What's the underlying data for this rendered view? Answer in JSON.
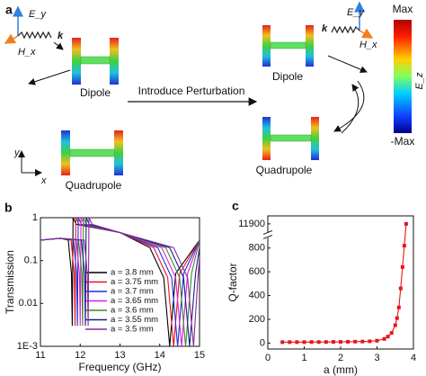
{
  "panel_a": {
    "label": "a",
    "left_ey": "E_y",
    "left_hx": "H_x",
    "left_k": "k",
    "dipole": "Dipole",
    "quadrupole": "Quadrupole",
    "arrow_text": "Introduce Perturbation",
    "axis_y": "y",
    "axis_x": "x",
    "right_ey": "E_y",
    "right_hx": "H_x",
    "right_k": "k",
    "right_dipole": "Dipole",
    "right_quadrupole": "Quadrupole",
    "colorbar_max": "Max",
    "colorbar_min": "-Max",
    "colorbar_title": "E_z"
  },
  "chart_data": [
    {
      "type": "line",
      "label": "b",
      "log_y": true,
      "x_label": "Frequency (GHz)",
      "y_label": "Transmission",
      "xlim": [
        11,
        15
      ],
      "xticks": [
        11,
        12,
        13,
        14,
        15
      ],
      "ylim": [
        0.001,
        1
      ],
      "yticks": [
        {
          "value": 0.001,
          "label": "1E-3"
        },
        0.01,
        0.1,
        1
      ],
      "series": [
        {
          "name": "a = 3.8 mm",
          "color": "#000000",
          "x": [
            11,
            11.5,
            11.7,
            11.78,
            11.8,
            11.82,
            11.9,
            13,
            13.75,
            14.1,
            14.25,
            14.4,
            15
          ],
          "values": [
            0.3,
            0.33,
            0.3,
            0.05,
            0.003,
            1,
            0.7,
            0.45,
            0.2,
            0.04,
            0.001,
            0.05,
            0.3
          ]
        },
        {
          "name": "a = 3.75 mm",
          "color": "#e8141c",
          "x": [
            11,
            11.5,
            11.77,
            11.85,
            11.87,
            11.89,
            11.97,
            13,
            13.85,
            14.2,
            14.35,
            14.5,
            15
          ],
          "values": [
            0.3,
            0.33,
            0.3,
            0.05,
            0.003,
            1,
            0.7,
            0.45,
            0.2,
            0.04,
            0.001,
            0.05,
            0.3
          ]
        },
        {
          "name": "a = 3.7 mm",
          "color": "#1f2fe0",
          "x": [
            11,
            11.5,
            11.83,
            11.91,
            11.93,
            11.95,
            12.03,
            13,
            13.95,
            14.3,
            14.45,
            14.6,
            15
          ],
          "values": [
            0.3,
            0.33,
            0.3,
            0.05,
            0.003,
            1,
            0.7,
            0.45,
            0.2,
            0.04,
            0.001,
            0.05,
            0.3
          ]
        },
        {
          "name": "a = 3.65 mm",
          "color": "#e020d8",
          "x": [
            11,
            11.5,
            11.9,
            11.98,
            12,
            12.02,
            12.1,
            13,
            14.05,
            14.4,
            14.55,
            14.7,
            15
          ],
          "values": [
            0.3,
            0.33,
            0.3,
            0.05,
            0.003,
            1,
            0.7,
            0.45,
            0.2,
            0.04,
            0.001,
            0.05,
            0.3
          ]
        },
        {
          "name": "a = 3.6 mm",
          "color": "#3a8a2a",
          "x": [
            11,
            11.5,
            11.96,
            12.04,
            12.06,
            12.08,
            12.16,
            13,
            14.15,
            14.5,
            14.65,
            14.8,
            15
          ],
          "values": [
            0.3,
            0.33,
            0.3,
            0.05,
            0.003,
            1,
            0.7,
            0.45,
            0.2,
            0.04,
            0.001,
            0.05,
            0.3
          ]
        },
        {
          "name": "a = 3.55 mm",
          "color": "#1a1a8a",
          "x": [
            11,
            11.5,
            12.03,
            12.11,
            12.13,
            12.15,
            12.23,
            13,
            14.25,
            14.6,
            14.75,
            14.9,
            15
          ],
          "values": [
            0.3,
            0.33,
            0.3,
            0.05,
            0.003,
            1,
            0.7,
            0.45,
            0.2,
            0.04,
            0.001,
            0.05,
            0.2
          ]
        },
        {
          "name": "a = 3.5 mm",
          "color": "#8a2a9a",
          "x": [
            11,
            11.5,
            12.1,
            12.18,
            12.2,
            12.22,
            12.3,
            13,
            14.35,
            14.7,
            14.85,
            14.95,
            15
          ],
          "values": [
            0.3,
            0.33,
            0.3,
            0.05,
            0.003,
            1,
            0.7,
            0.45,
            0.2,
            0.04,
            0.001,
            0.03,
            0.12
          ]
        }
      ]
    },
    {
      "type": "line",
      "label": "c",
      "color": "#e8141c",
      "x_label": "a (mm)",
      "y_label": "Q-factor",
      "xlim": [
        0,
        4
      ],
      "xticks": [
        0,
        1,
        2,
        3,
        4
      ],
      "ylim": [
        -50,
        11920
      ],
      "ybreak": [
        880,
        11880
      ],
      "yticks": [
        0,
        200,
        400,
        600,
        800,
        11900
      ],
      "x": [
        0.4,
        0.6,
        0.8,
        1.0,
        1.2,
        1.4,
        1.6,
        1.8,
        2.0,
        2.2,
        2.4,
        2.6,
        2.8,
        3.0,
        3.2,
        3.3,
        3.4,
        3.5,
        3.55,
        3.6,
        3.65,
        3.7,
        3.75,
        3.8
      ],
      "values": [
        8,
        8,
        8,
        8,
        9,
        9,
        9,
        10,
        10,
        11,
        12,
        13,
        15,
        20,
        35,
        55,
        85,
        150,
        210,
        300,
        460,
        640,
        820,
        11900
      ]
    }
  ]
}
